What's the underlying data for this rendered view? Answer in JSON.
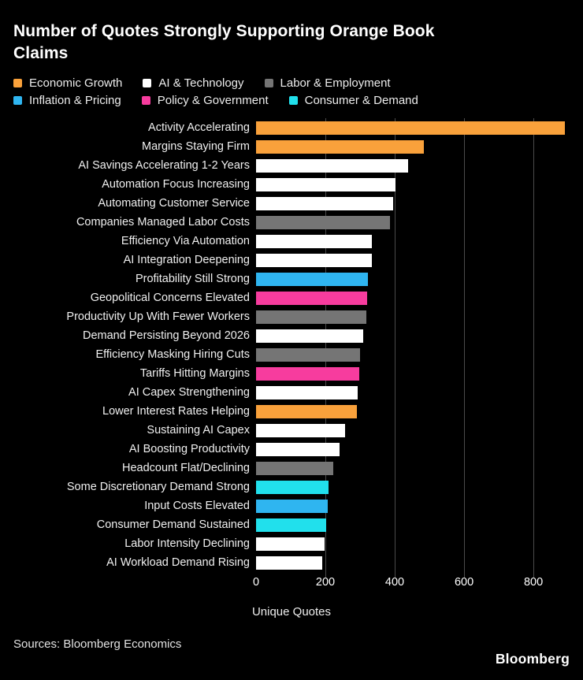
{
  "title": {
    "line1": "Number of Quotes Strongly Supporting Orange Book",
    "line2": "Claims"
  },
  "legend": {
    "rows": [
      [
        {
          "label": "Economic Growth",
          "group": "economic_growth"
        },
        {
          "label": "AI & Technology",
          "group": "ai_technology"
        },
        {
          "label": "Labor & Employment",
          "group": "labor_employment"
        }
      ],
      [
        {
          "label": "Inflation & Pricing",
          "group": "inflation_pricing"
        },
        {
          "label": "Policy & Government",
          "group": "policy_government"
        },
        {
          "label": "Consumer & Demand",
          "group": "consumer_demand"
        }
      ]
    ]
  },
  "chart_data": {
    "type": "bar",
    "orientation": "horizontal",
    "title": "Number of Quotes Strongly Supporting Orange Book Claims",
    "xlabel": "Unique Quotes",
    "x_ticks": [
      0,
      200,
      400,
      600,
      800
    ],
    "xlim": [
      0,
      943
    ],
    "grid": "vertical",
    "legend_position": "top",
    "categories": [
      "Activity Accelerating",
      "Margins Staying Firm",
      "AI Savings Accelerating 1-2 Years",
      "Automation Focus Increasing",
      "Automating Customer Service",
      "Companies Managed Labor Costs",
      "Efficiency Via Automation",
      "AI Integration Deepening",
      "Profitability Still Strong",
      "Geopolitical Concerns Elevated",
      "Productivity Up With Fewer Workers",
      "Demand Persisting Beyond 2026",
      "Efficiency Masking Hiring Cuts",
      "Tariffs Hitting Margins",
      "AI Capex Strengthening",
      "Lower Interest Rates Helping",
      "Sustaining AI Capex",
      "AI Boosting Productivity",
      "Headcount Flat/Declining",
      "Some Discretionary Demand Strong",
      "Input Costs Elevated",
      "Consumer Demand Sustained",
      "Labor Intensity Declining",
      "AI Workload Demand Rising"
    ],
    "values": [
      890,
      483,
      439,
      402,
      396,
      386,
      335,
      334,
      322,
      320,
      317,
      309,
      300,
      297,
      294,
      290,
      257,
      241,
      222,
      208,
      206,
      202,
      197,
      191
    ],
    "groups": [
      "economic_growth",
      "economic_growth",
      "ai_technology",
      "ai_technology",
      "ai_technology",
      "labor_employment",
      "ai_technology",
      "ai_technology",
      "inflation_pricing",
      "policy_government",
      "labor_employment",
      "ai_technology",
      "labor_employment",
      "policy_government",
      "ai_technology",
      "economic_growth",
      "ai_technology",
      "ai_technology",
      "labor_employment",
      "consumer_demand",
      "inflation_pricing",
      "consumer_demand",
      "ai_technology",
      "ai_technology"
    ],
    "group_colors": {
      "economic_growth": "#F9A13B",
      "ai_technology": "#FFFFFF",
      "labor_employment": "#757575",
      "inflation_pricing": "#2FB5F0",
      "policy_government": "#F73C9E",
      "consumer_demand": "#21E0EC"
    },
    "gridline_color": "#4B4B4B"
  },
  "footer": {
    "source": "Sources: Bloomberg Economics",
    "brand": "Bloomberg"
  }
}
